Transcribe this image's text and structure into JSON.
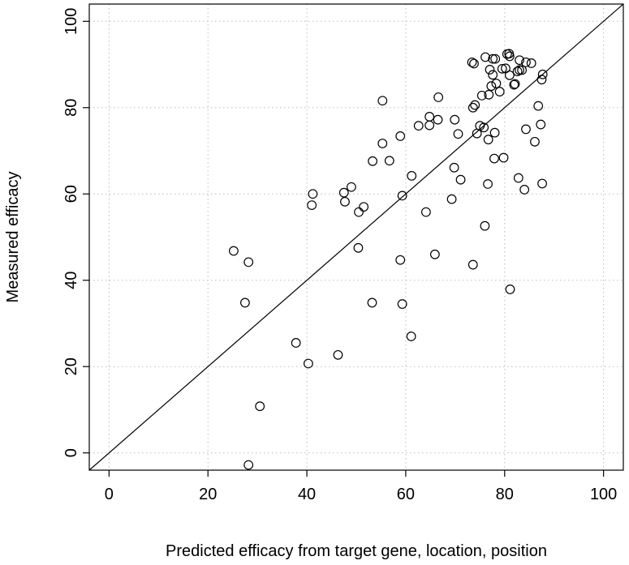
{
  "chart_data": {
    "type": "scatter",
    "title": "",
    "xlabel": "Predicted efficacy from target gene, location, position",
    "ylabel": "Measured efficacy",
    "xlim": [
      -4,
      104
    ],
    "ylim": [
      -4,
      104
    ],
    "xticks": [
      0,
      20,
      40,
      60,
      80,
      100
    ],
    "yticks": [
      0,
      20,
      40,
      60,
      80,
      100
    ],
    "grid": true,
    "reference_line": {
      "slope": 1,
      "intercept": 0
    },
    "marker": "open-circle",
    "colors": {
      "points": "#000000",
      "grid": "#bbbbbb",
      "axis": "#000000"
    },
    "points": [
      [
        25.2,
        46.8
      ],
      [
        28.2,
        44.2
      ],
      [
        27.5,
        34.8
      ],
      [
        28.2,
        -2.8
      ],
      [
        30.5,
        10.8
      ],
      [
        37.8,
        25.5
      ],
      [
        40.3,
        20.7
      ],
      [
        46.3,
        22.7
      ],
      [
        41.2,
        60.0
      ],
      [
        41.0,
        57.4
      ],
      [
        47.5,
        60.3
      ],
      [
        47.7,
        58.2
      ],
      [
        49.0,
        61.6
      ],
      [
        51.5,
        57.0
      ],
      [
        50.5,
        55.8
      ],
      [
        50.4,
        47.5
      ],
      [
        53.2,
        34.8
      ],
      [
        53.3,
        67.6
      ],
      [
        55.3,
        71.7
      ],
      [
        55.3,
        81.6
      ],
      [
        56.7,
        67.7
      ],
      [
        58.9,
        73.4
      ],
      [
        59.3,
        59.6
      ],
      [
        58.9,
        44.7
      ],
      [
        59.3,
        34.5
      ],
      [
        61.2,
        64.2
      ],
      [
        61.1,
        27.0
      ],
      [
        62.6,
        75.8
      ],
      [
        64.1,
        55.8
      ],
      [
        64.8,
        75.9
      ],
      [
        64.8,
        77.9
      ],
      [
        65.9,
        46.0
      ],
      [
        66.5,
        77.2
      ],
      [
        66.6,
        82.4
      ],
      [
        69.3,
        58.8
      ],
      [
        69.8,
        66.1
      ],
      [
        69.9,
        77.2
      ],
      [
        70.6,
        73.9
      ],
      [
        71.1,
        63.3
      ],
      [
        73.4,
        90.5
      ],
      [
        73.8,
        90.2
      ],
      [
        73.6,
        80.0
      ],
      [
        74.0,
        80.6
      ],
      [
        73.6,
        43.6
      ],
      [
        74.4,
        74.0
      ],
      [
        75.0,
        75.8
      ],
      [
        75.4,
        82.8
      ],
      [
        75.8,
        75.4
      ],
      [
        76.1,
        91.7
      ],
      [
        76.0,
        52.6
      ],
      [
        76.6,
        62.3
      ],
      [
        76.7,
        72.6
      ],
      [
        76.8,
        83.0
      ],
      [
        77.0,
        88.8
      ],
      [
        77.3,
        85.0
      ],
      [
        77.6,
        91.3
      ],
      [
        77.6,
        87.6
      ],
      [
        77.9,
        68.2
      ],
      [
        78.0,
        74.2
      ],
      [
        78.1,
        91.3
      ],
      [
        78.3,
        85.6
      ],
      [
        79.0,
        83.7
      ],
      [
        79.5,
        89.0
      ],
      [
        79.8,
        68.4
      ],
      [
        80.2,
        89.1
      ],
      [
        80.5,
        92.4
      ],
      [
        80.9,
        92.5
      ],
      [
        81.0,
        91.9
      ],
      [
        81.0,
        87.5
      ],
      [
        81.1,
        37.9
      ],
      [
        81.9,
        85.3
      ],
      [
        82.1,
        85.5
      ],
      [
        82.6,
        88.4
      ],
      [
        82.8,
        63.7
      ],
      [
        83.0,
        88.7
      ],
      [
        83.0,
        91.0
      ],
      [
        83.5,
        88.7
      ],
      [
        84.0,
        61.0
      ],
      [
        84.3,
        75.0
      ],
      [
        84.3,
        90.5
      ],
      [
        85.4,
        90.3
      ],
      [
        86.1,
        72.1
      ],
      [
        86.8,
        80.4
      ],
      [
        87.3,
        76.1
      ],
      [
        87.6,
        62.4
      ],
      [
        87.5,
        86.5
      ],
      [
        87.7,
        87.7
      ]
    ]
  }
}
